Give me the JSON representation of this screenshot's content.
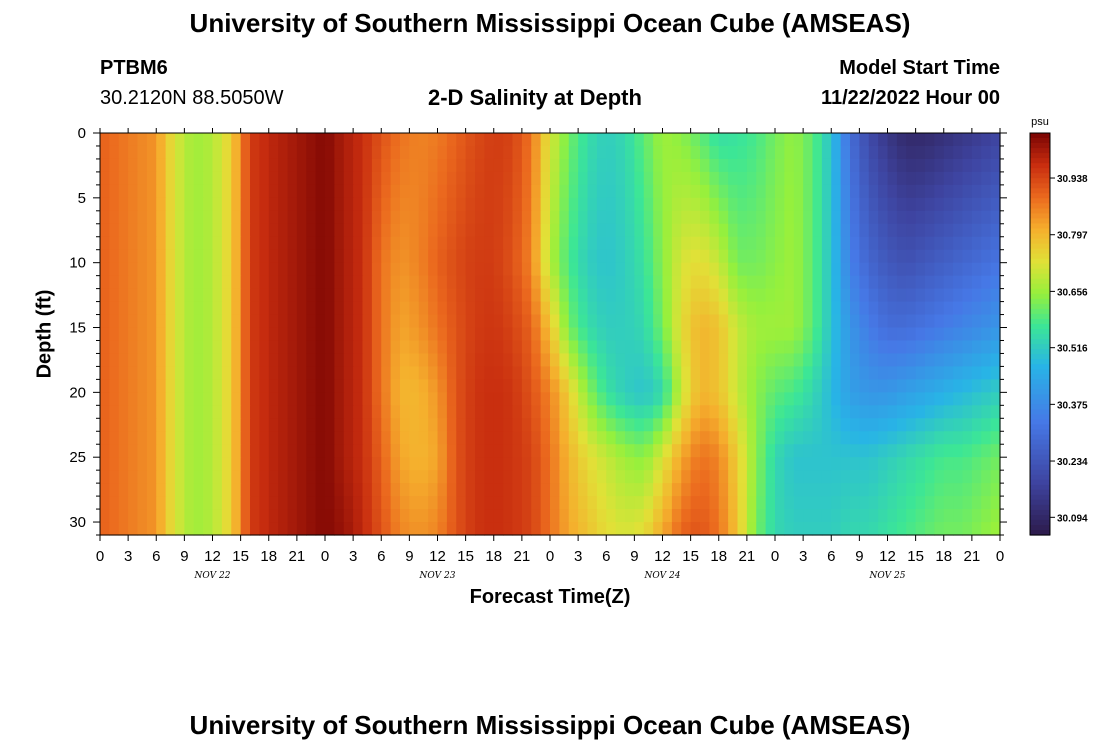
{
  "header": {
    "title": "University of Southern Mississippi Ocean Cube (AMSEAS)",
    "station_id": "PTBM6",
    "station_coords": "30.2120N  88.5050W",
    "plot_title": "2-D Salinity at Depth",
    "model_start_label": "Model Start Time",
    "model_start_value": "11/22/2022 Hour 00"
  },
  "footer": {
    "title": "University of Southern Mississippi Ocean Cube (AMSEAS)"
  },
  "colors": {
    "min": "#2c1a4a",
    "max": "#7a0403"
  },
  "chart_data": {
    "type": "heatmap",
    "title": "2-D Salinity at Depth",
    "xlabel": "Forecast Time(Z)",
    "ylabel": "Depth (ft)",
    "colorbar_unit": "psu",
    "colorbar_ticks": [
      "30.938",
      "30.797",
      "30.656",
      "30.516",
      "30.375",
      "30.234",
      "30.094"
    ],
    "colorbar_values": [
      30.938,
      30.797,
      30.656,
      30.516,
      30.375,
      30.234,
      30.094
    ],
    "value_range": [
      30.05,
      31.05
    ],
    "x_range_hours": [
      0,
      96
    ],
    "x_tick_labels": [
      "0",
      "3",
      "6",
      "9",
      "12",
      "15",
      "18",
      "21",
      "0",
      "3",
      "6",
      "9",
      "12",
      "15",
      "18",
      "21",
      "0",
      "3",
      "6",
      "9",
      "12",
      "15",
      "18",
      "21",
      "0",
      "3",
      "6",
      "9",
      "12",
      "15",
      "18",
      "21",
      "0"
    ],
    "day_labels": [
      "NOV 22",
      "NOV 23",
      "NOV 24",
      "NOV 25"
    ],
    "y_range_ft": [
      0,
      31
    ],
    "y_tick_values": [
      0,
      5,
      10,
      15,
      20,
      25,
      30
    ],
    "y_tick_labels": [
      "0",
      "5",
      "10",
      "15",
      "20",
      "25",
      "30"
    ],
    "depth_rows_ft": [
      0,
      10,
      15,
      20,
      25,
      31
    ],
    "time_hours": [
      0,
      2,
      4,
      6,
      8,
      10,
      12,
      14,
      16,
      18,
      20,
      22,
      24,
      26,
      28,
      30,
      32,
      34,
      36,
      38,
      40,
      42,
      44,
      46,
      48,
      50,
      52,
      54,
      56,
      58,
      60,
      62,
      64,
      66,
      68,
      70,
      72,
      74,
      76,
      78,
      80,
      82,
      84,
      86,
      88,
      90,
      92,
      94,
      96
    ],
    "values_by_depth": [
      [
        30.9,
        30.88,
        30.86,
        30.84,
        30.72,
        30.66,
        30.68,
        30.76,
        30.95,
        30.98,
        31.0,
        31.02,
        31.04,
        31.0,
        30.97,
        30.92,
        30.88,
        30.86,
        30.87,
        30.9,
        30.93,
        30.95,
        30.94,
        30.88,
        30.72,
        30.62,
        30.55,
        30.52,
        30.54,
        30.6,
        30.66,
        30.64,
        30.6,
        30.55,
        30.56,
        30.58,
        30.62,
        30.65,
        30.6,
        30.5,
        30.3,
        30.2,
        30.14,
        30.1,
        30.1,
        30.12,
        30.14,
        30.16,
        30.18
      ],
      [
        30.9,
        30.88,
        30.86,
        30.84,
        30.72,
        30.66,
        30.68,
        30.76,
        30.95,
        30.98,
        31.0,
        31.02,
        31.04,
        31.0,
        30.97,
        30.88,
        30.84,
        30.86,
        30.9,
        30.93,
        30.95,
        30.95,
        30.92,
        30.86,
        30.68,
        30.58,
        30.52,
        30.5,
        30.52,
        30.56,
        30.64,
        30.72,
        30.74,
        30.7,
        30.62,
        30.62,
        30.64,
        30.66,
        30.6,
        30.5,
        30.35,
        30.28,
        30.24,
        30.22,
        30.24,
        30.26,
        30.28,
        30.3,
        30.32
      ],
      [
        30.9,
        30.88,
        30.86,
        30.84,
        30.72,
        30.66,
        30.68,
        30.76,
        30.95,
        30.98,
        31.0,
        31.02,
        31.04,
        31.0,
        30.97,
        30.88,
        30.82,
        30.84,
        30.88,
        30.92,
        30.95,
        30.96,
        30.94,
        30.9,
        30.78,
        30.62,
        30.55,
        30.52,
        30.52,
        30.54,
        30.62,
        30.74,
        30.8,
        30.78,
        30.7,
        30.66,
        30.66,
        30.66,
        30.6,
        30.5,
        30.4,
        30.34,
        30.3,
        30.3,
        30.32,
        30.34,
        30.36,
        30.38,
        30.4
      ],
      [
        30.9,
        30.88,
        30.86,
        30.84,
        30.72,
        30.66,
        30.68,
        30.76,
        30.95,
        30.98,
        31.0,
        31.02,
        31.04,
        31.0,
        30.97,
        30.88,
        30.8,
        30.8,
        30.84,
        30.92,
        30.96,
        30.97,
        30.96,
        30.92,
        30.86,
        30.76,
        30.64,
        30.56,
        30.52,
        30.5,
        30.54,
        30.7,
        30.8,
        30.78,
        30.7,
        30.64,
        30.6,
        30.58,
        30.54,
        30.48,
        30.42,
        30.4,
        30.4,
        30.42,
        30.44,
        30.46,
        30.48,
        30.5,
        30.52
      ],
      [
        30.9,
        30.88,
        30.86,
        30.84,
        30.72,
        30.66,
        30.68,
        30.76,
        30.95,
        30.98,
        31.0,
        31.02,
        31.04,
        31.0,
        30.97,
        30.9,
        30.82,
        30.8,
        30.82,
        30.92,
        30.96,
        30.97,
        30.96,
        30.94,
        30.88,
        30.8,
        30.74,
        30.7,
        30.66,
        30.64,
        30.72,
        30.82,
        30.88,
        30.86,
        30.76,
        30.64,
        30.54,
        30.5,
        30.5,
        30.5,
        30.5,
        30.5,
        30.52,
        30.54,
        30.56,
        30.58,
        30.58,
        30.6,
        30.62
      ],
      [
        30.9,
        30.88,
        30.86,
        30.84,
        30.72,
        30.66,
        30.68,
        30.76,
        30.95,
        30.98,
        31.0,
        31.02,
        31.04,
        31.02,
        30.98,
        30.92,
        30.86,
        30.84,
        30.86,
        30.92,
        30.96,
        30.97,
        30.96,
        30.94,
        30.88,
        30.82,
        30.78,
        30.74,
        30.72,
        30.74,
        30.82,
        30.9,
        30.92,
        30.88,
        30.78,
        30.62,
        30.54,
        30.52,
        30.52,
        30.52,
        30.54,
        30.54,
        30.56,
        30.58,
        30.6,
        30.62,
        30.62,
        30.64,
        30.66
      ]
    ]
  }
}
